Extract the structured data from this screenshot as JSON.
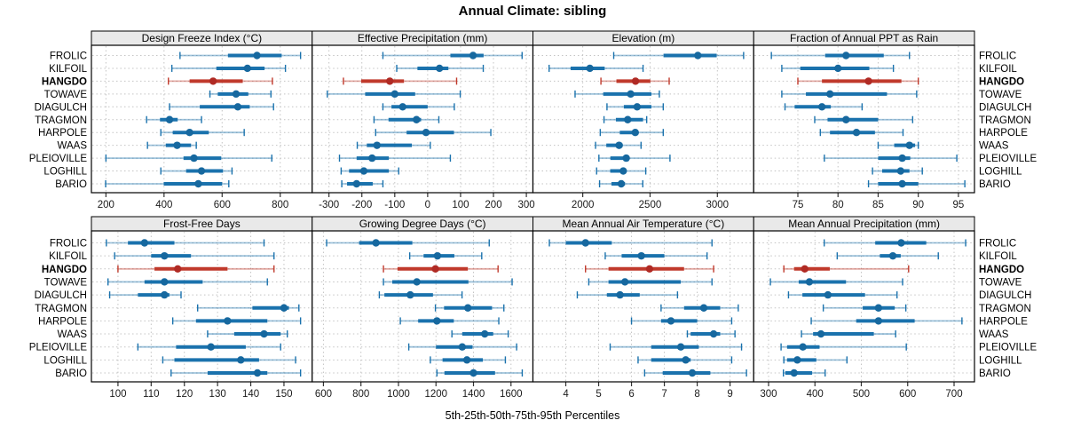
{
  "page": {
    "title": "Annual Climate: sibling",
    "xlabel": "5th-25th-50th-75th-95th Percentiles"
  },
  "chart_data": {
    "type": "dotplot-trellis",
    "title": "Annual Climate: sibling",
    "xlabel": "5th-25th-50th-75th-95th Percentiles",
    "percentiles": [
      5,
      25,
      50,
      75,
      95
    ],
    "legend_position": "none",
    "grid": "dotted",
    "sites": [
      "FROLIC",
      "KILFOIL",
      "HANGDO",
      "TOWAVE",
      "DIAGULCH",
      "TRAGMON",
      "HARPOLE",
      "WAAS",
      "PLEIOVILLE",
      "LOGHILL",
      "BARIO"
    ],
    "highlight_site": "HANGDO",
    "colors": {
      "series": "#1a72ad",
      "series_dot": "#16689f",
      "highlight": "#c0392b",
      "highlight_dot": "#b02a24",
      "strip_bg": "#e9e9e9",
      "panel_border": "#000000",
      "grid": "#c4c4c4",
      "tick_text": "#1a1a1a"
    },
    "panels": [
      {
        "title": "Design Freeze Index (°C)",
        "row": 1,
        "xlim": [
          150,
          910
        ],
        "ticks": [
          200,
          400,
          600,
          800
        ],
        "values": {
          "FROLIC": [
            455,
            620,
            720,
            805,
            870
          ],
          "KILFOIL": [
            427,
            580,
            687,
            746,
            818
          ],
          "HANGDO": [
            415,
            488,
            569,
            671,
            773
          ],
          "TOWAVE": [
            558,
            585,
            648,
            690,
            768
          ],
          "DIAGULCH": [
            419,
            523,
            654,
            695,
            777
          ],
          "TRAGMON": [
            340,
            386,
            419,
            447,
            529
          ],
          "HARPOLE": [
            389,
            430,
            488,
            554,
            676
          ],
          "WAAS": [
            343,
            406,
            445,
            493,
            511
          ],
          "PLEIOVILLE": [
            200,
            467,
            503,
            597,
            771
          ],
          "LOGHILL": [
            389,
            476,
            529,
            603,
            634
          ],
          "BARIO": [
            199,
            399,
            518,
            600,
            623
          ]
        }
      },
      {
        "title": "Effective Precipitation (mm)",
        "row": 1,
        "xlim": [
          -351,
          320
        ],
        "ticks": [
          -300,
          -200,
          -100,
          0,
          100,
          200,
          300
        ],
        "values": {
          "FROLIC": [
            -136,
            69,
            138,
            170,
            287
          ],
          "KILFOIL": [
            -94,
            -31,
            36,
            63,
            169
          ],
          "HANGDO": [
            -256,
            -202,
            -115,
            -72,
            88
          ],
          "TOWAVE": [
            -305,
            -190,
            -100,
            -38,
            99
          ],
          "DIAGULCH": [
            -136,
            -110,
            -76,
            0,
            81
          ],
          "TRAGMON": [
            -163,
            -119,
            -34,
            -20,
            34
          ],
          "HARPOLE": [
            -158,
            -64,
            -5,
            80,
            192
          ],
          "WAAS": [
            -214,
            -185,
            -154,
            -48,
            8
          ],
          "PLEIOVILLE": [
            -268,
            -216,
            -169,
            -118,
            69
          ],
          "LOGHILL": [
            -263,
            -239,
            -194,
            -118,
            -88
          ],
          "BARIO": [
            -261,
            -245,
            -216,
            -167,
            -136
          ]
        }
      },
      {
        "title": "Elevation (m)",
        "row": 1,
        "xlim": [
          1630,
          3270
        ],
        "ticks": [
          2000,
          2500,
          3000
        ],
        "values": {
          "FROLIC": [
            2230,
            2600,
            2855,
            2995,
            3195
          ],
          "KILFOIL": [
            1750,
            1910,
            2053,
            2163,
            2448
          ],
          "HANGDO": [
            2135,
            2250,
            2392,
            2502,
            2642
          ],
          "TOWAVE": [
            1943,
            2152,
            2356,
            2510,
            2569
          ],
          "DIAGULCH": [
            2180,
            2305,
            2404,
            2510,
            2598
          ],
          "TRAGMON": [
            2158,
            2246,
            2334,
            2448,
            2475
          ],
          "HARPOLE": [
            2130,
            2275,
            2390,
            2412,
            2598
          ],
          "WAAS": [
            2095,
            2175,
            2270,
            2297,
            2433
          ],
          "PLEIOVILLE": [
            2120,
            2205,
            2323,
            2345,
            2648
          ],
          "LOGHILL": [
            2103,
            2204,
            2301,
            2323,
            2468
          ],
          "BARIO": [
            2125,
            2213,
            2286,
            2314,
            2446
          ]
        }
      },
      {
        "title": "Fraction of Annual PPT as Rain",
        "row": 1,
        "xlim": [
          69.5,
          97
        ],
        "ticks": [
          75,
          80,
          85,
          90,
          95
        ],
        "values": {
          "FROLIC": [
            71.7,
            78.4,
            81.0,
            85.7,
            88.9
          ],
          "KILFOIL": [
            73.0,
            75.3,
            80.0,
            83.9,
            86.9
          ],
          "HANGDO": [
            75.0,
            78.0,
            83.8,
            87.9,
            90.0
          ],
          "TOWAVE": [
            73.0,
            76.0,
            79.0,
            86.1,
            89.8
          ],
          "DIAGULCH": [
            73.4,
            74.6,
            78.0,
            79.1,
            83.0
          ],
          "TRAGMON": [
            77.1,
            78.7,
            81.0,
            85.0,
            89.3
          ],
          "HARPOLE": [
            77.8,
            79.0,
            82.3,
            84.6,
            88.1
          ],
          "WAAS": [
            85.0,
            87.0,
            88.9,
            89.6,
            90.0
          ],
          "PLEIOVILLE": [
            78.3,
            85.0,
            88.0,
            89.0,
            94.8
          ],
          "LOGHILL": [
            84.3,
            85.5,
            87.8,
            88.9,
            90.5
          ],
          "BARIO": [
            83.8,
            85.0,
            88.0,
            90.0,
            95.8
          ]
        }
      },
      {
        "title": "Frost-Free Days",
        "row": 2,
        "xlim": [
          92,
          158.5
        ],
        "ticks": [
          100,
          110,
          120,
          130,
          140,
          150
        ],
        "values": {
          "FROLIC": [
            96.5,
            103,
            108,
            117,
            144
          ],
          "KILFOIL": [
            99,
            110,
            114,
            122,
            147
          ],
          "HANGDO": [
            100,
            111,
            118,
            133,
            147
          ],
          "TOWAVE": [
            97,
            108,
            114,
            125.5,
            145
          ],
          "DIAGULCH": [
            97.5,
            106,
            114,
            115.5,
            119
          ],
          "TRAGMON": [
            124,
            140.5,
            150,
            151.5,
            154.5
          ],
          "HARPOLE": [
            116.5,
            123.5,
            133,
            145,
            155
          ],
          "WAAS": [
            127,
            135,
            144,
            149,
            151
          ],
          "PLEIOVILLE": [
            106,
            117.5,
            128,
            138.5,
            149
          ],
          "LOGHILL": [
            113.5,
            117,
            137,
            142.5,
            153.5
          ],
          "BARIO": [
            116,
            127,
            142,
            145,
            155
          ]
        }
      },
      {
        "title": "Growing Degree Days (°C)",
        "row": 2,
        "xlim": [
          540,
          1717
        ],
        "ticks": [
          600,
          800,
          1000,
          1200,
          1400,
          1600
        ],
        "values": {
          "FROLIC": [
            617,
            790,
            880,
            1074,
            1484
          ],
          "KILFOIL": [
            1060,
            1134,
            1208,
            1298,
            1444
          ],
          "HANGDO": [
            920,
            995,
            1197,
            1370,
            1531
          ],
          "TOWAVE": [
            920,
            967,
            1098,
            1373,
            1606
          ],
          "DIAGULCH": [
            898,
            925,
            1063,
            1184,
            1339
          ],
          "TRAGMON": [
            1197,
            1243,
            1370,
            1499,
            1562
          ],
          "HARPOLE": [
            1010,
            1105,
            1205,
            1295,
            1535
          ],
          "WAAS": [
            1285,
            1340,
            1460,
            1505,
            1585
          ],
          "PLEIOVILLE": [
            1055,
            1200,
            1340,
            1395,
            1630
          ],
          "LOGHILL": [
            1170,
            1235,
            1365,
            1450,
            1570
          ],
          "BARIO": [
            1205,
            1245,
            1400,
            1515,
            1660
          ]
        }
      },
      {
        "title": "Mean Annual Air Temperature (°C)",
        "row": 2,
        "xlim": [
          3.0,
          9.72
        ],
        "ticks": [
          4,
          5,
          6,
          7,
          8,
          9
        ],
        "values": {
          "FROLIC": [
            3.5,
            4.0,
            4.6,
            5.4,
            8.45
          ],
          "KILFOIL": [
            5.2,
            5.7,
            6.3,
            7.0,
            8.3
          ],
          "HANGDO": [
            4.6,
            5.3,
            6.55,
            7.6,
            8.5
          ],
          "TOWAVE": [
            4.7,
            5.3,
            5.8,
            7.5,
            8.45
          ],
          "DIAGULCH": [
            4.35,
            5.25,
            5.65,
            6.25,
            7.4
          ],
          "TRAGMON": [
            6.9,
            7.6,
            8.2,
            8.7,
            9.25
          ],
          "HARPOLE": [
            6.0,
            6.9,
            7.2,
            8.0,
            9.05
          ],
          "WAAS": [
            7.7,
            7.8,
            8.5,
            8.7,
            9.15
          ],
          "PLEIOVILLE": [
            5.35,
            6.6,
            7.5,
            8.05,
            9.35
          ],
          "LOGHILL": [
            6.2,
            6.6,
            7.65,
            7.8,
            9.05
          ],
          "BARIO": [
            6.4,
            6.95,
            7.85,
            8.4,
            9.5
          ]
        }
      },
      {
        "title": "Mean Annual Precipitation (mm)",
        "row": 2,
        "xlim": [
          268,
          744
        ],
        "ticks": [
          300,
          400,
          500,
          600,
          700
        ],
        "values": {
          "FROLIC": [
            420,
            530,
            586,
            640,
            725
          ],
          "KILFOIL": [
            448,
            540,
            568,
            585,
            666
          ],
          "HANGDO": [
            333,
            355,
            378,
            432,
            602
          ],
          "TOWAVE": [
            304,
            365,
            388,
            467,
            589
          ],
          "DIAGULCH": [
            343,
            373,
            428,
            508,
            577
          ],
          "TRAGMON": [
            418,
            503,
            537,
            572,
            596
          ],
          "HARPOLE": [
            392,
            489,
            537,
            615,
            717
          ],
          "WAAS": [
            371,
            396,
            413,
            527,
            574
          ],
          "PLEIOVILLE": [
            327,
            340,
            374,
            410,
            597
          ],
          "LOGHILL": [
            333,
            340,
            362,
            403,
            469
          ],
          "BARIO": [
            332,
            336,
            355,
            394,
            422
          ]
        }
      }
    ]
  }
}
